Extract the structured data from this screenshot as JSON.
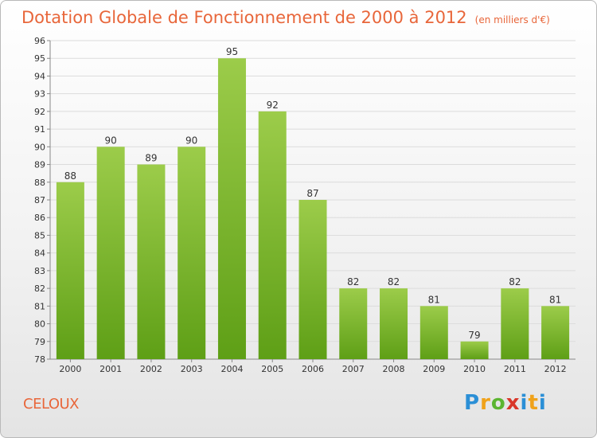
{
  "header": {
    "title": "Dotation Globale de Fonctionnement de 2000 à 2012",
    "unit": "(en milliers d'€)"
  },
  "footer": {
    "location": "CELOUX",
    "logo_text": "Proxiti"
  },
  "colors": {
    "accent": "#e8663a",
    "bar_top": "#9ccc4a",
    "bar_bottom": "#5e9f16"
  },
  "chart_data": {
    "type": "bar",
    "title": "Dotation Globale de Fonctionnement de 2000 à 2012",
    "subtitle": "(en milliers d'€)",
    "xlabel": "",
    "ylabel": "",
    "categories": [
      "2000",
      "2001",
      "2002",
      "2003",
      "2004",
      "2005",
      "2006",
      "2007",
      "2008",
      "2009",
      "2010",
      "2011",
      "2012"
    ],
    "values": [
      88,
      90,
      89,
      90,
      95,
      92,
      87,
      82,
      82,
      81,
      79,
      82,
      81
    ],
    "ylim": [
      78,
      96
    ],
    "yticks": [
      78,
      79,
      80,
      81,
      82,
      83,
      84,
      85,
      86,
      87,
      88,
      89,
      90,
      91,
      92,
      93,
      94,
      95,
      96
    ],
    "grid": true,
    "legend": "none"
  }
}
